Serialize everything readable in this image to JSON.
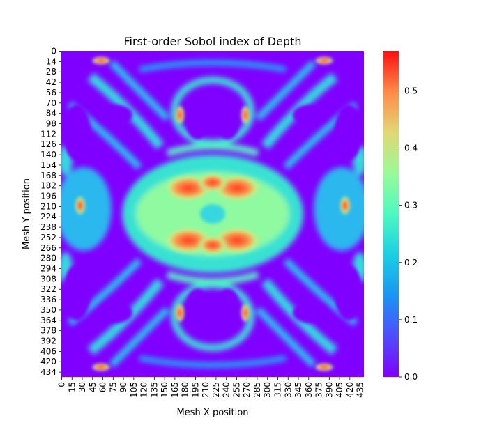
{
  "chart_data": {
    "type": "heatmap",
    "title": "First-order Sobol index of Depth",
    "xlabel": "Mesh X position",
    "ylabel": "Mesh Y position",
    "x_ticks": [
      "0",
      "15",
      "30",
      "45",
      "60",
      "75",
      "90",
      "105",
      "120",
      "135",
      "150",
      "165",
      "180",
      "195",
      "210",
      "225",
      "240",
      "255",
      "270",
      "285",
      "300",
      "315",
      "330",
      "345",
      "360",
      "375",
      "390",
      "405",
      "420",
      "435"
    ],
    "y_ticks": [
      "0",
      "14",
      "28",
      "42",
      "56",
      "70",
      "84",
      "98",
      "112",
      "126",
      "140",
      "154",
      "168",
      "182",
      "196",
      "210",
      "224",
      "238",
      "252",
      "266",
      "280",
      "294",
      "308",
      "322",
      "336",
      "350",
      "364",
      "378",
      "392",
      "406",
      "420",
      "434"
    ],
    "grid_size": [
      441,
      441
    ],
    "x_range": [
      0,
      441
    ],
    "y_range": [
      0,
      441
    ],
    "y_inverted": true,
    "colormap": "rainbow",
    "colorbar": {
      "range": [
        0.0,
        0.57
      ],
      "ticks": [
        "0.0",
        "0.1",
        "0.2",
        "0.3",
        "0.4",
        "0.5"
      ],
      "tick_values": [
        0.0,
        0.1,
        0.2,
        0.3,
        0.4,
        0.5
      ]
    },
    "symmetry": "mirror about both vertical and horizontal center lines",
    "features": [
      {
        "label": "central high-sensitivity band",
        "x": 220,
        "y": 225,
        "value": 0.52
      },
      {
        "label": "top hot spots",
        "x": 168,
        "y": 84,
        "value": 0.5
      },
      {
        "label": "bottom hot spots",
        "x": 168,
        "y": 354,
        "value": 0.5
      },
      {
        "label": "corner blobs",
        "x": 60,
        "y": 16,
        "value": 0.45
      }
    ],
    "grid": false,
    "legend": "colorbar-right"
  }
}
